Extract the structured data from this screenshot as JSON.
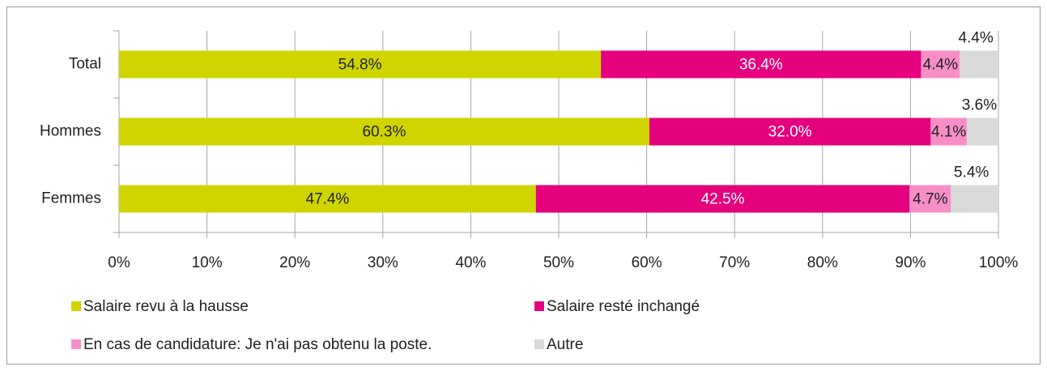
{
  "chart_data": {
    "type": "stacked_barh",
    "categories": [
      "Total",
      "Hommes",
      "Femmes"
    ],
    "series": [
      {
        "name": "Salaire revu à la hausse",
        "color": "#d0d500",
        "label_color": "#222222",
        "values": [
          54.8,
          60.3,
          47.4
        ],
        "value_labels": [
          "54.8%",
          "60.3%",
          "47.4%"
        ]
      },
      {
        "name": "Salaire resté inchangé",
        "color": "#e5007d",
        "label_color": "#ffffff",
        "values": [
          36.4,
          32.0,
          42.5
        ],
        "value_labels": [
          "36.4%",
          "32.0%",
          "42.5%"
        ]
      },
      {
        "name": "En cas de candidature: Je n'ai pas obtenu la poste.",
        "color": "#f78fc6",
        "label_color": "#222222",
        "values": [
          4.4,
          4.1,
          4.7
        ],
        "value_labels": [
          "4.4%",
          "4.1%",
          "4.7%"
        ]
      },
      {
        "name": "Autre",
        "color": "#d9d9d9",
        "label_color": "#222222",
        "label_position": "above",
        "values": [
          4.4,
          3.6,
          5.4
        ],
        "value_labels": [
          "4.4%",
          "3.6%",
          "5.4%"
        ]
      }
    ],
    "xlim": [
      0,
      100
    ],
    "xticks": [
      {
        "value": 0,
        "label": "0%"
      },
      {
        "value": 10,
        "label": "10%"
      },
      {
        "value": 20,
        "label": "20%"
      },
      {
        "value": 30,
        "label": "30%"
      },
      {
        "value": 40,
        "label": "40%"
      },
      {
        "value": 50,
        "label": "50%"
      },
      {
        "value": 60,
        "label": "60%"
      },
      {
        "value": 70,
        "label": "70%"
      },
      {
        "value": 80,
        "label": "80%"
      },
      {
        "value": 90,
        "label": "90%"
      },
      {
        "value": 100,
        "label": "100%"
      }
    ],
    "grid": true,
    "legend": "bottom"
  }
}
